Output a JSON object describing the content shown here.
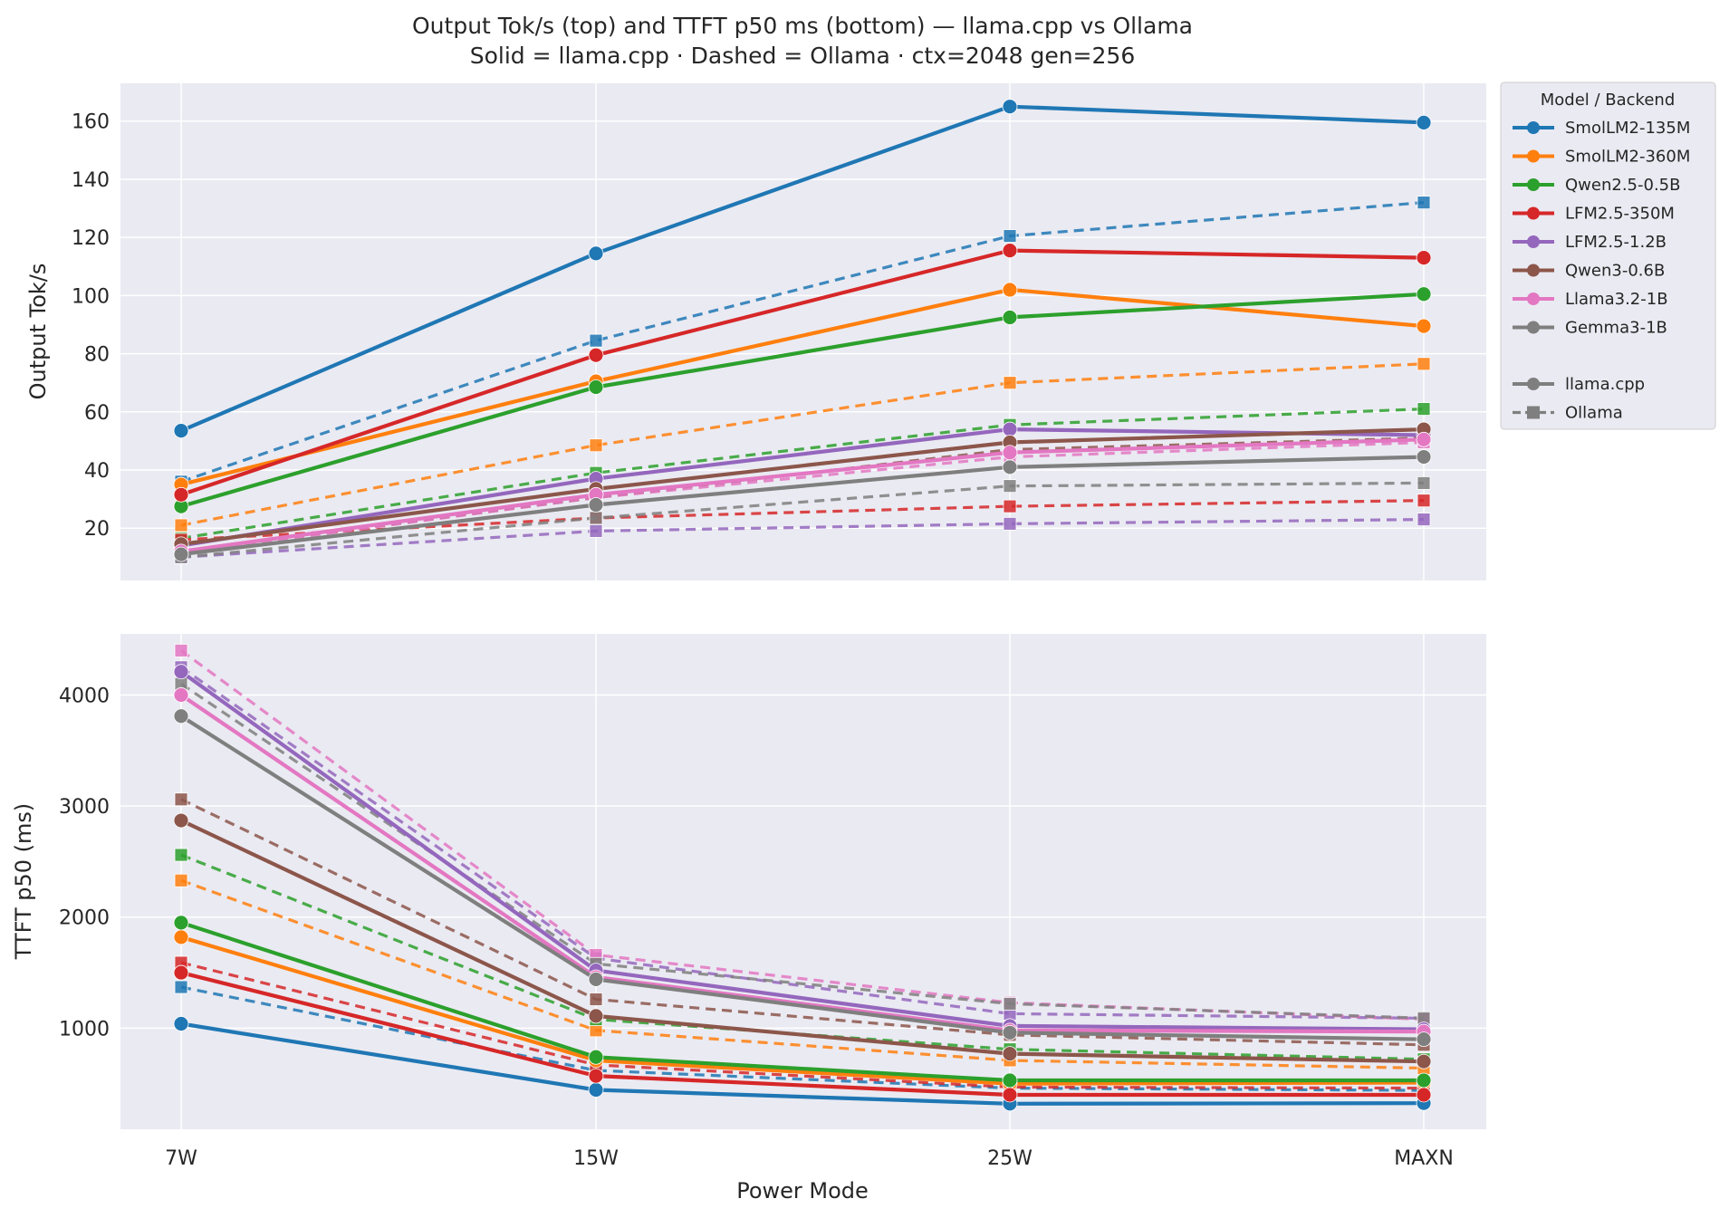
{
  "chart_data": [
    {
      "type": "line",
      "title": "Output Tok/s (top) and TTFT p50 ms (bottom) — llama.cpp vs Ollama",
      "subtitle": "Solid = llama.cpp  ·  Dashed = Ollama  ·  ctx=2048 gen=256",
      "xlabel": "",
      "ylabel": "Output Tok/s",
      "categories": [
        "7W",
        "15W",
        "25W",
        "MAXN"
      ],
      "ylim": [
        2,
        173
      ],
      "yticks": [
        20,
        40,
        60,
        80,
        100,
        120,
        140,
        160
      ],
      "grid": true,
      "series": [
        {
          "name": "SmolLM2-135M",
          "backend": "llama.cpp",
          "color": "#1f77b4",
          "values": [
            53.5,
            114.5,
            165,
            159.5
          ]
        },
        {
          "name": "SmolLM2-360M",
          "backend": "llama.cpp",
          "color": "#ff7f0e",
          "values": [
            35,
            70.5,
            102,
            89.5
          ]
        },
        {
          "name": "Qwen2.5-0.5B",
          "backend": "llama.cpp",
          "color": "#2ca02c",
          "values": [
            27.5,
            68.5,
            92.5,
            100.5
          ]
        },
        {
          "name": "LFM2.5-350M",
          "backend": "llama.cpp",
          "color": "#d62728",
          "values": [
            31.5,
            79.5,
            115.5,
            113
          ]
        },
        {
          "name": "LFM2.5-1.2B",
          "backend": "llama.cpp",
          "color": "#9467bd",
          "values": [
            14,
            37,
            54,
            52
          ]
        },
        {
          "name": "Qwen3-0.6B",
          "backend": "llama.cpp",
          "color": "#8c564b",
          "values": [
            14.5,
            33.5,
            49.5,
            54
          ]
        },
        {
          "name": "Llama3.2-1B",
          "backend": "llama.cpp",
          "color": "#e377c2",
          "values": [
            12,
            31.5,
            46,
            50.5
          ]
        },
        {
          "name": "Gemma3-1B",
          "backend": "llama.cpp",
          "color": "#7f7f7f",
          "values": [
            11,
            28,
            41,
            44.5
          ]
        },
        {
          "name": "SmolLM2-135M",
          "backend": "Ollama",
          "color": "#1f77b4",
          "values": [
            36,
            84.5,
            120.5,
            132
          ]
        },
        {
          "name": "SmolLM2-360M",
          "backend": "Ollama",
          "color": "#ff7f0e",
          "values": [
            21,
            48.5,
            70,
            76.5
          ]
        },
        {
          "name": "Qwen2.5-0.5B",
          "backend": "Ollama",
          "color": "#2ca02c",
          "values": [
            16.5,
            39,
            55.5,
            61
          ]
        },
        {
          "name": "LFM2.5-350M",
          "backend": "Ollama",
          "color": "#d62728",
          "values": [
            16,
            23.5,
            27.5,
            29.5
          ]
        },
        {
          "name": "LFM2.5-1.2B",
          "backend": "Ollama",
          "color": "#9467bd",
          "values": [
            10,
            19,
            21.5,
            23
          ]
        },
        {
          "name": "Qwen3-0.6B",
          "backend": "Ollama",
          "color": "#8c564b",
          "values": [
            12,
            30.5,
            47,
            51
          ]
        },
        {
          "name": "Llama3.2-1B",
          "backend": "Ollama",
          "color": "#e377c2",
          "values": [
            11.5,
            30.5,
            44.5,
            49.5
          ]
        },
        {
          "name": "Gemma3-1B",
          "backend": "Ollama",
          "color": "#7f7f7f",
          "values": [
            10,
            23.5,
            34.5,
            35.5
          ]
        }
      ]
    },
    {
      "type": "line",
      "title": "",
      "xlabel": "Power Mode",
      "ylabel": "TTFT p50 (ms)",
      "categories": [
        "7W",
        "15W",
        "25W",
        "MAXN"
      ],
      "ylim": [
        90,
        4550
      ],
      "yticks": [
        1000,
        2000,
        3000,
        4000
      ],
      "grid": true,
      "series": [
        {
          "name": "SmolLM2-135M",
          "backend": "llama.cpp",
          "color": "#1f77b4",
          "values": [
            1040,
            445,
            320,
            325
          ]
        },
        {
          "name": "SmolLM2-360M",
          "backend": "llama.cpp",
          "color": "#ff7f0e",
          "values": [
            1820,
            710,
            500,
            510
          ]
        },
        {
          "name": "Qwen2.5-0.5B",
          "backend": "llama.cpp",
          "color": "#2ca02c",
          "values": [
            1950,
            740,
            530,
            530
          ]
        },
        {
          "name": "LFM2.5-350M",
          "backend": "llama.cpp",
          "color": "#d62728",
          "values": [
            1500,
            570,
            400,
            400
          ]
        },
        {
          "name": "LFM2.5-1.2B",
          "backend": "llama.cpp",
          "color": "#9467bd",
          "values": [
            4210,
            1520,
            1020,
            990
          ]
        },
        {
          "name": "Qwen3-0.6B",
          "backend": "llama.cpp",
          "color": "#8c564b",
          "values": [
            2870,
            1110,
            770,
            700
          ]
        },
        {
          "name": "Llama3.2-1B",
          "backend": "llama.cpp",
          "color": "#e377c2",
          "values": [
            4000,
            1460,
            980,
            970
          ]
        },
        {
          "name": "Gemma3-1B",
          "backend": "llama.cpp",
          "color": "#7f7f7f",
          "values": [
            3810,
            1440,
            960,
            900
          ]
        },
        {
          "name": "SmolLM2-135M",
          "backend": "Ollama",
          "color": "#1f77b4",
          "values": [
            1370,
            620,
            460,
            440
          ]
        },
        {
          "name": "SmolLM2-360M",
          "backend": "Ollama",
          "color": "#ff7f0e",
          "values": [
            2330,
            980,
            710,
            640
          ]
        },
        {
          "name": "Qwen2.5-0.5B",
          "backend": "Ollama",
          "color": "#2ca02c",
          "values": [
            2560,
            1080,
            810,
            720
          ]
        },
        {
          "name": "LFM2.5-350M",
          "backend": "Ollama",
          "color": "#d62728",
          "values": [
            1590,
            670,
            470,
            460
          ]
        },
        {
          "name": "LFM2.5-1.2B",
          "backend": "Ollama",
          "color": "#9467bd",
          "values": [
            4250,
            1630,
            1130,
            1090
          ]
        },
        {
          "name": "Qwen3-0.6B",
          "backend": "Ollama",
          "color": "#8c564b",
          "values": [
            3060,
            1260,
            940,
            850
          ]
        },
        {
          "name": "Llama3.2-1B",
          "backend": "Ollama",
          "color": "#e377c2",
          "values": [
            4400,
            1660,
            1230,
            1080
          ]
        },
        {
          "name": "Gemma3-1B",
          "backend": "Ollama",
          "color": "#7f7f7f",
          "values": [
            4100,
            1580,
            1220,
            1090
          ]
        }
      ]
    }
  ],
  "legend": {
    "title": "Model  /  Backend",
    "placement": "outside-right",
    "models": [
      {
        "label": "SmolLM2-135M",
        "color": "#1f77b4"
      },
      {
        "label": "SmolLM2-360M",
        "color": "#ff7f0e"
      },
      {
        "label": "Qwen2.5-0.5B",
        "color": "#2ca02c"
      },
      {
        "label": "LFM2.5-350M",
        "color": "#d62728"
      },
      {
        "label": "LFM2.5-1.2B",
        "color": "#9467bd"
      },
      {
        "label": "Qwen3-0.6B",
        "color": "#8c564b"
      },
      {
        "label": "Llama3.2-1B",
        "color": "#e377c2"
      },
      {
        "label": "Gemma3-1B",
        "color": "#7f7f7f"
      }
    ],
    "backends": [
      {
        "label": "llama.cpp",
        "style": "solid",
        "marker": "circle",
        "color": "#7f7f7f"
      },
      {
        "label": "Ollama",
        "style": "dashed",
        "marker": "square",
        "color": "#7f7f7f"
      }
    ]
  },
  "colors": {
    "plot_background": "#eaeaf2",
    "grid": "#ffffff",
    "text": "#262626"
  }
}
